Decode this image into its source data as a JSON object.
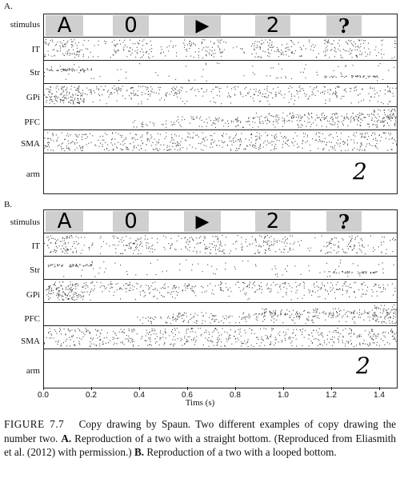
{
  "panels": [
    {
      "label": "A.",
      "rows": [
        "stimulus",
        "IT",
        "Str",
        "GPi",
        "PFC",
        "SMA",
        "arm"
      ],
      "stimuli": [
        "A",
        "0",
        "▶",
        "2",
        "?"
      ],
      "arm_output": "2"
    },
    {
      "label": "B.",
      "rows": [
        "stimulus",
        "IT",
        "Str",
        "GPi",
        "PFC",
        "SMA",
        "arm"
      ],
      "stimuli": [
        "A",
        "0",
        "▶",
        "2",
        "?"
      ],
      "arm_output": "2"
    }
  ],
  "axis": {
    "ticks": [
      "0.0",
      "0.2",
      "0.4",
      "0.6",
      "0.8",
      "1.0",
      "1.2",
      "1.4"
    ],
    "label": "Tims (s)"
  },
  "caption": {
    "figure": "FIGURE 7.7",
    "text1": "Copy drawing by Spaun. Two different examples of copy drawing the number two. ",
    "a_label": "A.",
    "text2": " Reproduction of a two with a straight bottom. (Reproduced from Eliasmith et al. (2012) with permission.) ",
    "b_label": "B.",
    "text3": " Reproduction of a two with a looped bottom."
  },
  "colors": {
    "stimulus_bg": "#cfcfcf",
    "frame": "#222222",
    "spike": "#444444"
  }
}
